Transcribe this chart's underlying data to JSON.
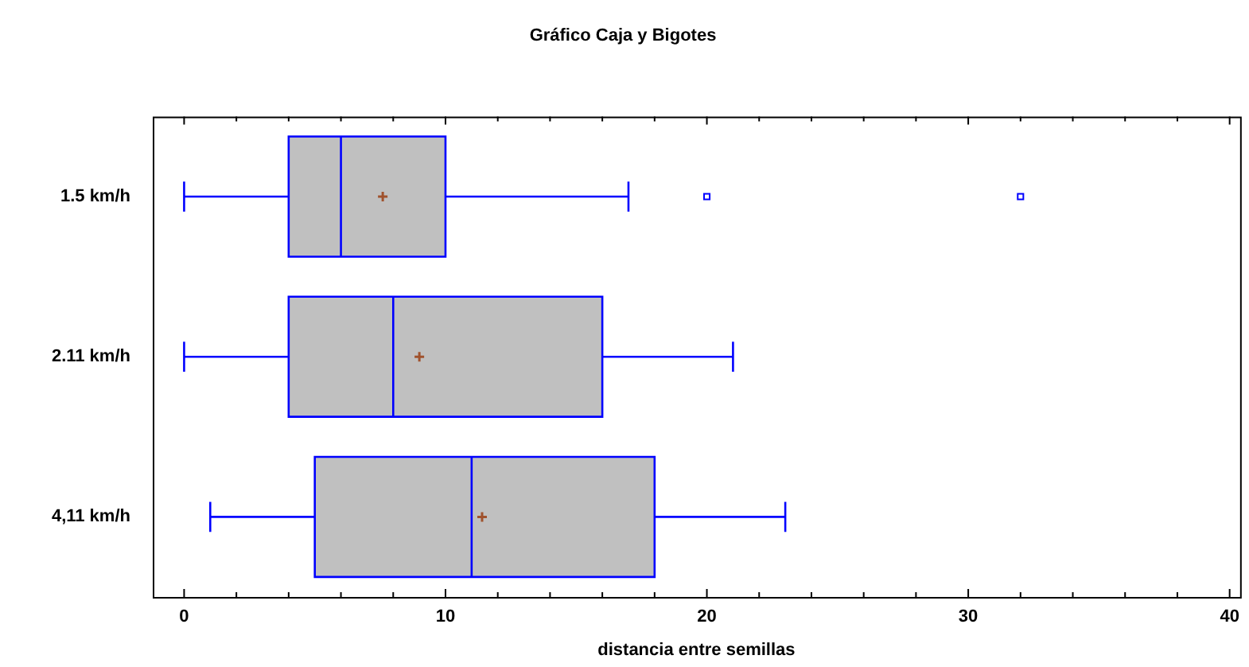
{
  "chart_data": {
    "type": "box",
    "title": "Gráfico Caja y Bigotes",
    "xlabel": "distancia entre semillas",
    "orientation": "horizontal",
    "categories": [
      "1.5 km/h",
      "2.11 km/h",
      "4,11 km/h"
    ],
    "color": "#c0c0c0",
    "boxes": [
      {
        "low": 0,
        "q1": 4,
        "median": 6,
        "q3": 10,
        "high": 17,
        "mean": 7.6,
        "outliers": [
          20,
          32
        ]
      },
      {
        "low": 0,
        "q1": 4,
        "median": 8,
        "q3": 16,
        "high": 21,
        "mean": 9
      },
      {
        "low": 1,
        "q1": 5,
        "median": 11,
        "q3": 18,
        "high": 23,
        "mean": 11.4
      }
    ],
    "xlim": [
      -1.2,
      40.4
    ],
    "xticks": [
      0,
      {
        "value": 2,
        "label": null
      },
      {
        "value": 4,
        "label": null
      },
      {
        "value": 6,
        "label": null
      },
      {
        "value": 8,
        "label": null
      },
      10,
      {
        "value": 12,
        "label": null
      },
      {
        "value": 14,
        "label": null
      },
      {
        "value": 16,
        "label": null
      },
      {
        "value": 18,
        "label": null
      },
      20,
      {
        "value": 22,
        "label": null
      },
      {
        "value": 24,
        "label": null
      },
      {
        "value": 26,
        "label": null
      },
      {
        "value": 28,
        "label": null
      },
      30,
      {
        "value": 32,
        "label": null
      },
      {
        "value": 34,
        "label": null
      },
      {
        "value": 36,
        "label": null
      },
      {
        "value": 38,
        "label": null
      },
      40
    ],
    "grid": false,
    "legend": false
  }
}
